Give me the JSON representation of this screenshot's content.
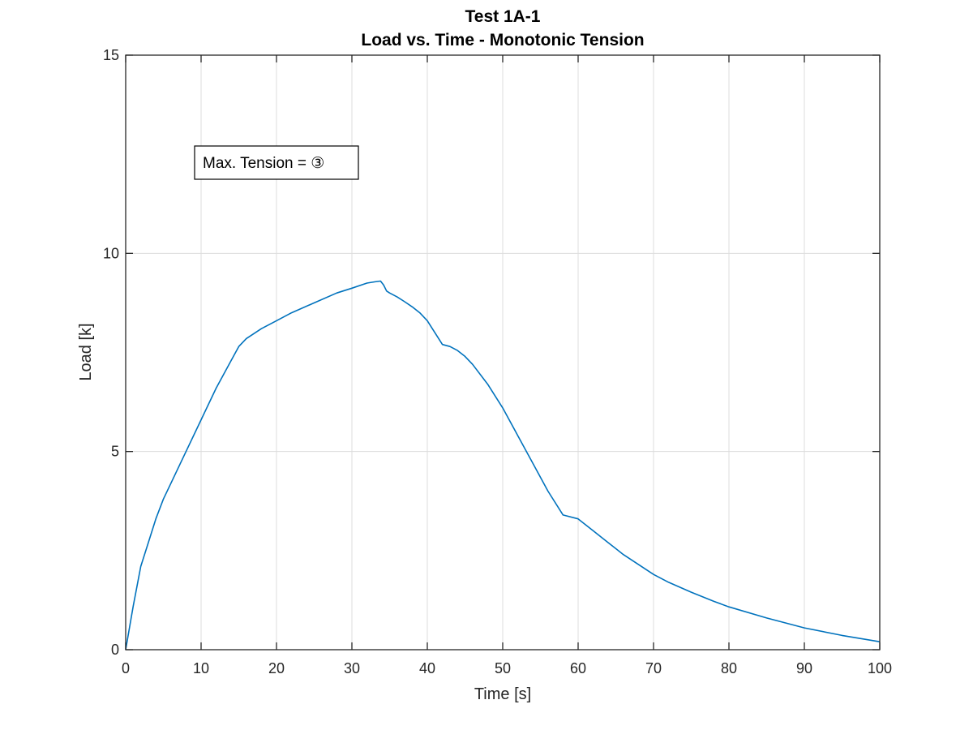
{
  "chart_data": {
    "type": "line",
    "title": "Test 1A-1",
    "subtitle": "Load vs. Time - Monotonic Tension",
    "xlabel": "Time [s]",
    "ylabel": "Load [k]",
    "xlim": [
      0,
      100
    ],
    "ylim": [
      0,
      15
    ],
    "xticks": [
      "0",
      "10",
      "20",
      "30",
      "40",
      "50",
      "60",
      "70",
      "80",
      "90",
      "100"
    ],
    "yticks": [
      "0",
      "5",
      "10",
      "15"
    ],
    "grid": true,
    "series_color": "#0072bd",
    "annotation": "Max. Tension = ③",
    "series": [
      {
        "x": [
          0,
          1,
          2,
          3,
          4,
          5,
          6,
          8,
          10,
          12,
          14,
          15,
          16,
          18,
          20,
          22,
          25,
          28,
          30,
          32,
          33,
          33.8,
          34.2,
          34.6,
          35,
          36,
          37,
          38,
          39,
          40,
          41,
          42,
          43,
          44,
          45,
          46,
          48,
          50,
          52,
          54,
          56,
          58,
          60,
          62,
          64,
          66,
          68,
          70,
          72,
          75,
          78,
          80,
          85,
          90,
          95,
          100
        ],
        "y": [
          0,
          1.1,
          2.1,
          2.7,
          3.3,
          3.8,
          4.2,
          5.0,
          5.8,
          6.6,
          7.3,
          7.65,
          7.85,
          8.1,
          8.3,
          8.5,
          8.75,
          9.0,
          9.12,
          9.25,
          9.28,
          9.3,
          9.2,
          9.05,
          9.0,
          8.9,
          8.78,
          8.65,
          8.5,
          8.3,
          8.0,
          7.7,
          7.65,
          7.55,
          7.4,
          7.2,
          6.7,
          6.1,
          5.4,
          4.7,
          4.0,
          3.4,
          3.3,
          3.0,
          2.7,
          2.4,
          2.15,
          1.9,
          1.7,
          1.45,
          1.22,
          1.08,
          0.8,
          0.55,
          0.36,
          0.2
        ]
      }
    ]
  }
}
